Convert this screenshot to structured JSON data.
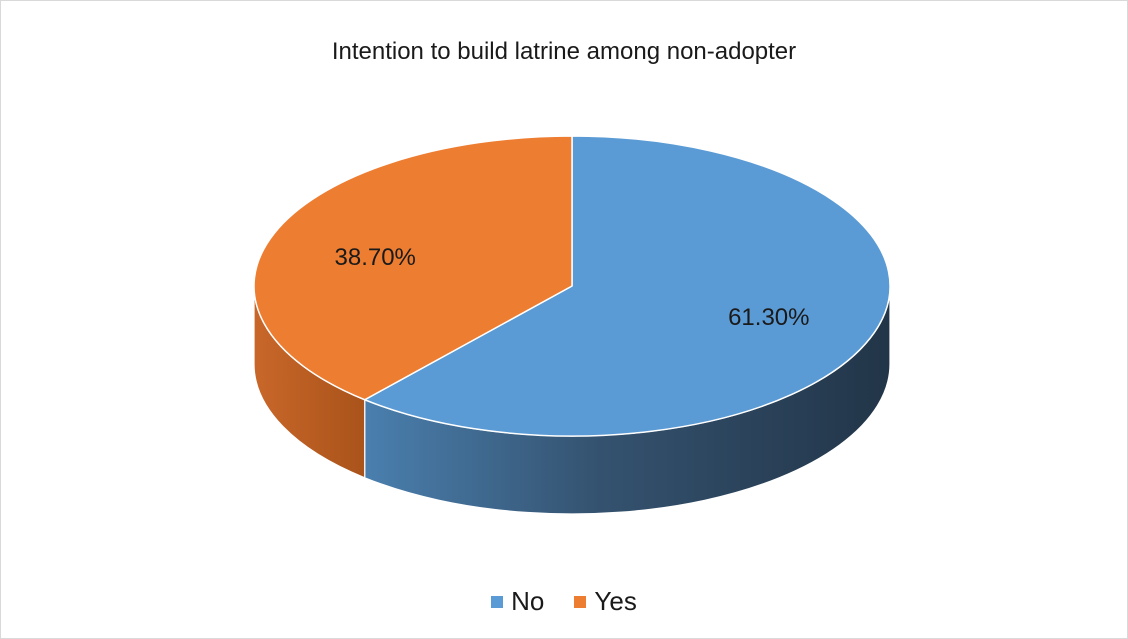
{
  "chart_data": {
    "type": "pie",
    "style": "3d",
    "title": "Intention to build latrine among non-adopter",
    "slices": [
      {
        "name": "No",
        "value": 61.3,
        "label": "61.30%",
        "color": "#5b9bd5",
        "side_color": "#2e4a66"
      },
      {
        "name": "Yes",
        "value": 38.7,
        "label": "38.70%",
        "color": "#ed7d31",
        "side_color": "#b85b1d"
      }
    ],
    "legend_position": "bottom"
  }
}
